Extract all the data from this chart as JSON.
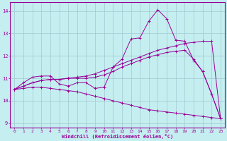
{
  "xlabel": "Windchill (Refroidissement éolien,°C)",
  "xlim": [
    -0.5,
    23.5
  ],
  "ylim": [
    8.8,
    14.4
  ],
  "yticks": [
    9,
    10,
    11,
    12,
    13,
    14
  ],
  "xticks": [
    0,
    1,
    2,
    3,
    4,
    5,
    6,
    7,
    8,
    9,
    10,
    11,
    12,
    13,
    14,
    15,
    16,
    17,
    18,
    19,
    20,
    21,
    22,
    23
  ],
  "bg_color": "#c5eef0",
  "line_color": "#990099",
  "grid_color": "#a0c8d0",
  "lines": [
    {
      "x": [
        0,
        1,
        2,
        3,
        4,
        5,
        6,
        7,
        8,
        9,
        10,
        11,
        12,
        13,
        14,
        15,
        16,
        17,
        18,
        19,
        20,
        21,
        22,
        23
      ],
      "y": [
        10.5,
        10.8,
        11.05,
        11.1,
        11.1,
        10.75,
        10.65,
        10.8,
        10.8,
        10.55,
        10.6,
        11.5,
        11.85,
        12.75,
        12.8,
        13.55,
        14.05,
        13.65,
        12.7,
        12.65,
        11.8,
        11.3,
        10.3,
        9.2
      ]
    },
    {
      "x": [
        0,
        1,
        2,
        3,
        4,
        5,
        6,
        7,
        8,
        9,
        10,
        11,
        12,
        13,
        14,
        15,
        16,
        17,
        18,
        19,
        20,
        21,
        22,
        23
      ],
      "y": [
        10.5,
        10.65,
        10.8,
        10.9,
        10.95,
        10.95,
        11.0,
        11.05,
        11.1,
        11.2,
        11.35,
        11.5,
        11.65,
        11.8,
        11.95,
        12.1,
        12.25,
        12.35,
        12.45,
        12.55,
        12.6,
        12.65,
        12.65,
        9.2
      ]
    },
    {
      "x": [
        0,
        1,
        2,
        3,
        4,
        5,
        6,
        7,
        8,
        9,
        10,
        11,
        12,
        13,
        14,
        15,
        16,
        17,
        18,
        19,
        20,
        21,
        22,
        23
      ],
      "y": [
        10.5,
        10.65,
        10.8,
        10.9,
        10.95,
        10.95,
        11.0,
        11.0,
        11.0,
        11.05,
        11.15,
        11.3,
        11.5,
        11.65,
        11.8,
        11.95,
        12.05,
        12.15,
        12.2,
        12.25,
        11.85,
        11.3,
        10.3,
        9.2
      ]
    },
    {
      "x": [
        0,
        1,
        2,
        3,
        4,
        5,
        6,
        7,
        8,
        9,
        10,
        11,
        12,
        13,
        14,
        15,
        16,
        17,
        18,
        19,
        20,
        21,
        22,
        23
      ],
      "y": [
        10.5,
        10.55,
        10.6,
        10.6,
        10.55,
        10.5,
        10.45,
        10.4,
        10.3,
        10.2,
        10.1,
        10.0,
        9.9,
        9.8,
        9.7,
        9.6,
        9.55,
        9.5,
        9.45,
        9.4,
        9.35,
        9.3,
        9.25,
        9.2
      ]
    }
  ]
}
